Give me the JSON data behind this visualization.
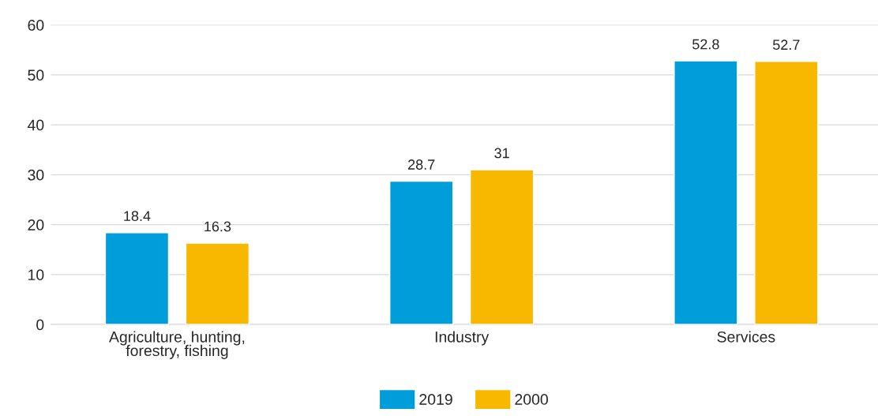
{
  "chart_data": {
    "type": "bar",
    "categories": [
      "Agriculture, hunting,\nforestry, fishing",
      "Industry",
      "Services"
    ],
    "series": [
      {
        "name": "2019",
        "color": "#009ddb",
        "values": [
          18.4,
          28.7,
          52.8
        ]
      },
      {
        "name": "2000",
        "color": "#f9b800",
        "values": [
          16.3,
          31,
          52.7
        ]
      }
    ],
    "ylim": [
      0,
      60
    ],
    "yticks": [
      0,
      10,
      20,
      30,
      40,
      50,
      60
    ],
    "grid": "y",
    "legend": "bottom",
    "data_labels": true
  }
}
